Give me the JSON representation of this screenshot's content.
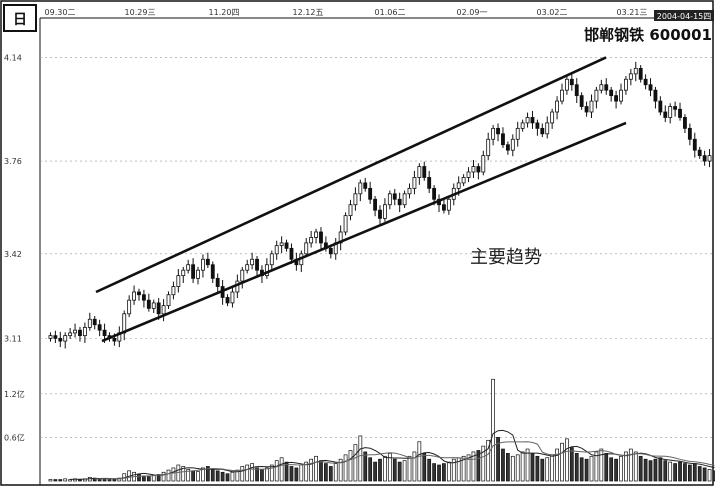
{
  "chart_data": {
    "type": "candlestick",
    "period_label": "日",
    "title": "邯郸钢铁 600001",
    "date_labels": [
      "09.30二",
      "10.29三",
      "11.20四",
      "12.12五",
      "01.06二",
      "02.09一",
      "03.02二",
      "03.21三"
    ],
    "current_date_label": "2004-04-15四",
    "price_ticks": [
      {
        "label": "4.14",
        "value": 4.14
      },
      {
        "label": "3.76",
        "value": 3.76
      },
      {
        "label": "3.42",
        "value": 3.42
      },
      {
        "label": "3.11",
        "value": 3.11
      }
    ],
    "volume_ticks": [
      {
        "label": "1.2亿",
        "value": 1.2
      },
      {
        "label": "0.6亿",
        "value": 0.6
      }
    ],
    "price_range": [
      3.06,
      4.16
    ],
    "volume_range": [
      0,
      1.5
    ],
    "annotation": "主要趋势",
    "trend_channel": {
      "upper": [
        {
          "x": 96,
          "y": 3.28
        },
        {
          "x": 606,
          "y": 4.14
        }
      ],
      "lower": [
        {
          "x": 102,
          "y": 3.1
        },
        {
          "x": 626,
          "y": 3.9
        }
      ]
    },
    "closes": [
      3.12,
      3.11,
      3.1,
      3.12,
      3.13,
      3.14,
      3.12,
      3.15,
      3.18,
      3.16,
      3.14,
      3.12,
      3.11,
      3.1,
      3.13,
      3.2,
      3.25,
      3.28,
      3.27,
      3.25,
      3.22,
      3.24,
      3.2,
      3.23,
      3.27,
      3.3,
      3.34,
      3.36,
      3.38,
      3.33,
      3.36,
      3.4,
      3.38,
      3.33,
      3.3,
      3.26,
      3.24,
      3.28,
      3.32,
      3.36,
      3.38,
      3.4,
      3.36,
      3.34,
      3.38,
      3.42,
      3.45,
      3.46,
      3.44,
      3.4,
      3.38,
      3.42,
      3.46,
      3.48,
      3.5,
      3.46,
      3.44,
      3.42,
      3.46,
      3.5,
      3.56,
      3.6,
      3.64,
      3.68,
      3.66,
      3.62,
      3.58,
      3.55,
      3.6,
      3.64,
      3.62,
      3.6,
      3.64,
      3.66,
      3.7,
      3.74,
      3.7,
      3.66,
      3.62,
      3.6,
      3.58,
      3.62,
      3.66,
      3.68,
      3.7,
      3.72,
      3.74,
      3.72,
      3.78,
      3.84,
      3.88,
      3.86,
      3.82,
      3.8,
      3.84,
      3.88,
      3.9,
      3.92,
      3.9,
      3.88,
      3.86,
      3.9,
      3.94,
      3.98,
      4.02,
      4.06,
      4.04,
      4.0,
      3.96,
      3.94,
      3.98,
      4.02,
      4.04,
      4.02,
      4.0,
      3.98,
      4.02,
      4.06,
      4.08,
      4.1,
      4.06,
      4.04,
      4.02,
      3.98,
      3.94,
      3.92,
      3.96,
      3.95,
      3.92,
      3.88,
      3.84,
      3.8,
      3.78,
      3.76,
      3.78
    ],
    "volumes": [
      0.02,
      0.02,
      0.02,
      0.03,
      0.02,
      0.03,
      0.02,
      0.03,
      0.05,
      0.04,
      0.03,
      0.03,
      0.02,
      0.03,
      0.04,
      0.1,
      0.14,
      0.12,
      0.09,
      0.07,
      0.06,
      0.08,
      0.09,
      0.12,
      0.15,
      0.18,
      0.22,
      0.2,
      0.16,
      0.14,
      0.13,
      0.18,
      0.2,
      0.16,
      0.14,
      0.12,
      0.1,
      0.12,
      0.15,
      0.2,
      0.22,
      0.24,
      0.18,
      0.16,
      0.18,
      0.22,
      0.28,
      0.32,
      0.26,
      0.2,
      0.18,
      0.22,
      0.26,
      0.3,
      0.34,
      0.28,
      0.24,
      0.2,
      0.24,
      0.3,
      0.36,
      0.42,
      0.5,
      0.62,
      0.4,
      0.32,
      0.26,
      0.3,
      0.34,
      0.38,
      0.3,
      0.26,
      0.28,
      0.34,
      0.4,
      0.54,
      0.38,
      0.3,
      0.24,
      0.22,
      0.24,
      0.26,
      0.3,
      0.32,
      0.34,
      0.36,
      0.4,
      0.42,
      0.48,
      0.56,
      1.4,
      0.6,
      0.44,
      0.38,
      0.34,
      0.36,
      0.4,
      0.44,
      0.38,
      0.34,
      0.3,
      0.32,
      0.36,
      0.44,
      0.52,
      0.58,
      0.46,
      0.38,
      0.32,
      0.3,
      0.34,
      0.4,
      0.44,
      0.38,
      0.32,
      0.3,
      0.34,
      0.4,
      0.44,
      0.4,
      0.34,
      0.3,
      0.28,
      0.3,
      0.32,
      0.28,
      0.26,
      0.24,
      0.26,
      0.24,
      0.22,
      0.24,
      0.2,
      0.18,
      0.16,
      0.14
    ]
  }
}
